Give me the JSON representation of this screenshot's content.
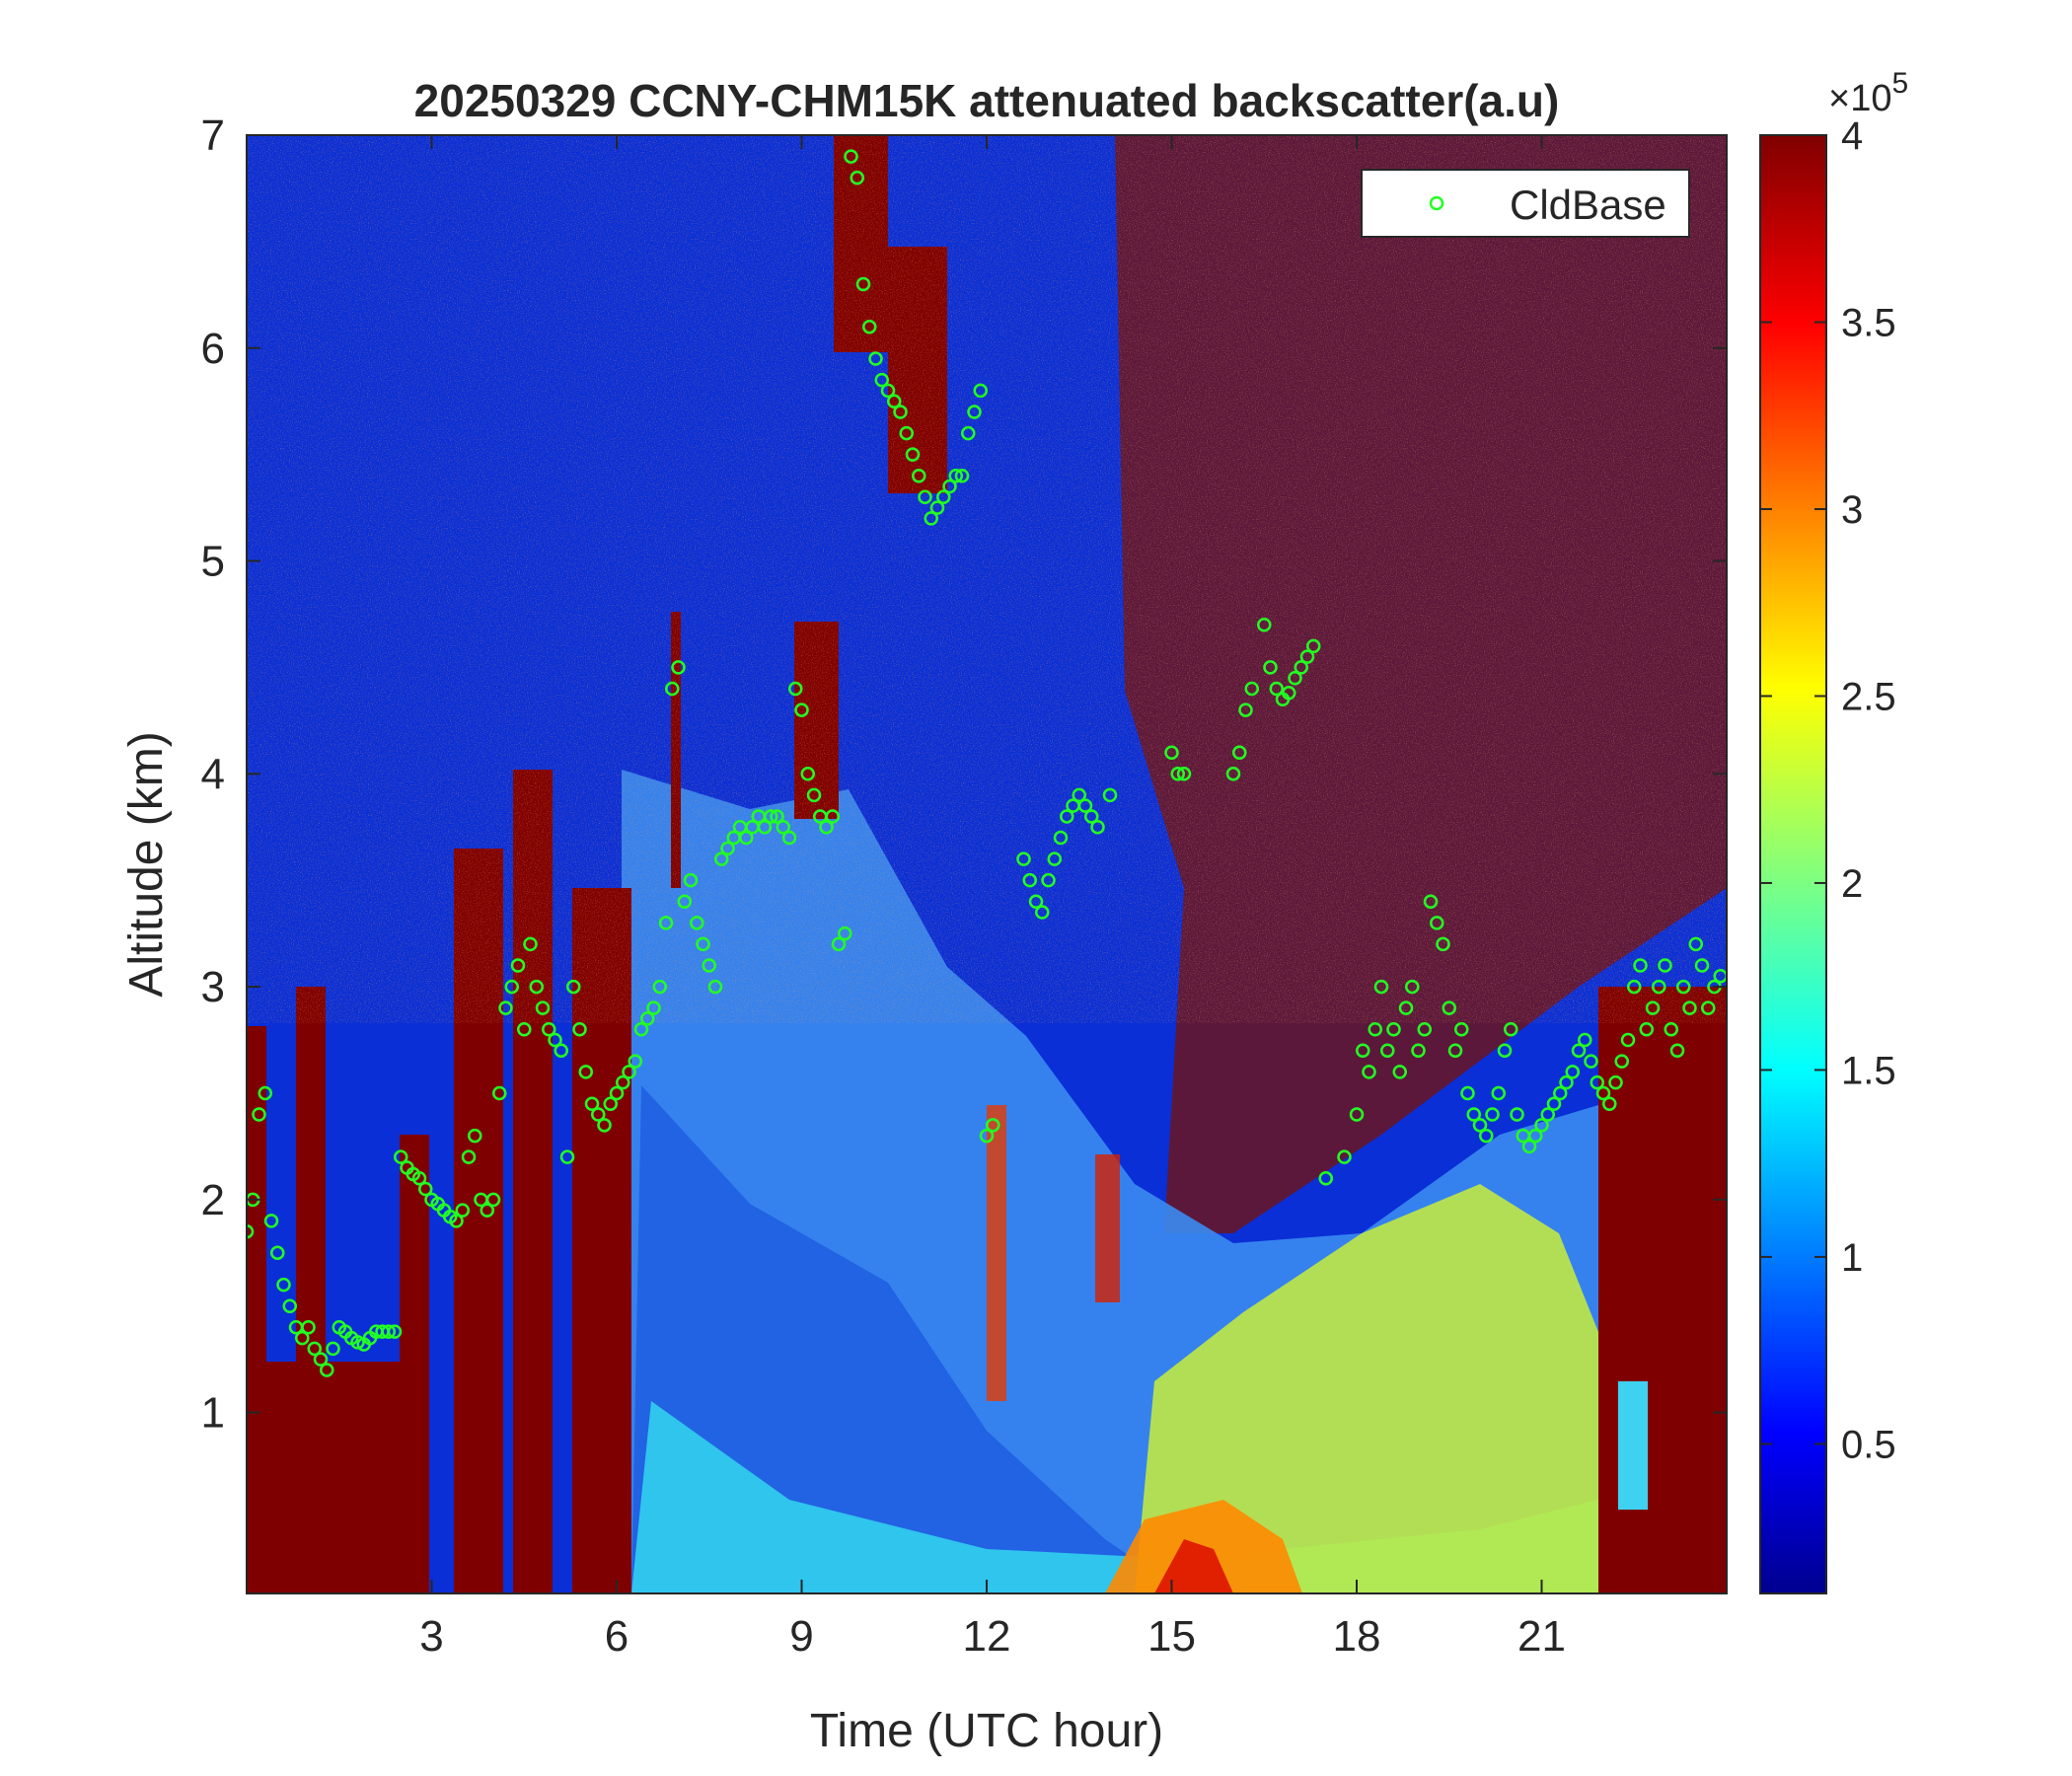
{
  "chart_data": {
    "type": "heatmap",
    "title": "20250329 CCNY-CHM15K attenuated backscatter(a.u)",
    "xlabel": "Time (UTC hour)",
    "ylabel": "Altitude (km)",
    "xlim": [
      0,
      24
    ],
    "ylim": [
      0.15,
      7
    ],
    "x_ticks": [
      3,
      6,
      9,
      12,
      15,
      18,
      21
    ],
    "y_ticks": [
      1,
      2,
      3,
      4,
      5,
      6,
      7
    ],
    "colorbar": {
      "colormap": "jet",
      "range": [
        0.1,
        4
      ],
      "ticks": [
        0.5,
        1,
        1.5,
        2,
        2.5,
        3,
        3.5,
        4
      ],
      "tick_labels": [
        "0.5",
        "1",
        "1.5",
        "2",
        "2.5",
        "3",
        "3.5",
        "4"
      ],
      "exponent_label": "×10",
      "exponent_power": "5"
    },
    "legend": {
      "position": "top-right",
      "entries": [
        {
          "name": "CldBase",
          "marker": "circle",
          "color": "#22ff22"
        }
      ]
    },
    "cloud_base_km": [
      [
        0.0,
        1.85
      ],
      [
        0.1,
        2.0
      ],
      [
        0.2,
        2.4
      ],
      [
        0.3,
        2.5
      ],
      [
        0.4,
        1.9
      ],
      [
        0.5,
        1.75
      ],
      [
        0.6,
        1.6
      ],
      [
        0.7,
        1.5
      ],
      [
        0.8,
        1.4
      ],
      [
        0.9,
        1.35
      ],
      [
        1.0,
        1.4
      ],
      [
        1.1,
        1.3
      ],
      [
        1.2,
        1.25
      ],
      [
        1.3,
        1.2
      ],
      [
        1.4,
        1.3
      ],
      [
        1.5,
        1.4
      ],
      [
        1.6,
        1.38
      ],
      [
        1.7,
        1.35
      ],
      [
        1.8,
        1.33
      ],
      [
        1.9,
        1.32
      ],
      [
        2.0,
        1.35
      ],
      [
        2.1,
        1.38
      ],
      [
        2.2,
        1.38
      ],
      [
        2.3,
        1.38
      ],
      [
        2.4,
        1.38
      ],
      [
        2.5,
        2.2
      ],
      [
        2.6,
        2.15
      ],
      [
        2.7,
        2.12
      ],
      [
        2.8,
        2.1
      ],
      [
        2.9,
        2.05
      ],
      [
        3.0,
        2.0
      ],
      [
        3.1,
        1.98
      ],
      [
        3.2,
        1.95
      ],
      [
        3.3,
        1.92
      ],
      [
        3.4,
        1.9
      ],
      [
        3.5,
        1.95
      ],
      [
        3.6,
        2.2
      ],
      [
        3.7,
        2.3
      ],
      [
        3.8,
        2.0
      ],
      [
        3.9,
        1.95
      ],
      [
        4.0,
        2.0
      ],
      [
        4.1,
        2.5
      ],
      [
        4.2,
        2.9
      ],
      [
        4.3,
        3.0
      ],
      [
        4.4,
        3.1
      ],
      [
        4.5,
        2.8
      ],
      [
        4.6,
        3.2
      ],
      [
        4.7,
        3.0
      ],
      [
        4.8,
        2.9
      ],
      [
        4.9,
        2.8
      ],
      [
        5.0,
        2.75
      ],
      [
        5.1,
        2.7
      ],
      [
        5.2,
        2.2
      ],
      [
        5.3,
        3.0
      ],
      [
        5.4,
        2.8
      ],
      [
        5.5,
        2.6
      ],
      [
        5.6,
        2.45
      ],
      [
        5.7,
        2.4
      ],
      [
        5.8,
        2.35
      ],
      [
        5.9,
        2.45
      ],
      [
        6.0,
        2.5
      ],
      [
        6.1,
        2.55
      ],
      [
        6.2,
        2.6
      ],
      [
        6.3,
        2.65
      ],
      [
        6.4,
        2.8
      ],
      [
        6.5,
        2.85
      ],
      [
        6.6,
        2.9
      ],
      [
        6.7,
        3.0
      ],
      [
        6.8,
        3.3
      ],
      [
        6.9,
        4.4
      ],
      [
        7.0,
        4.5
      ],
      [
        7.1,
        3.4
      ],
      [
        7.2,
        3.5
      ],
      [
        7.3,
        3.3
      ],
      [
        7.4,
        3.2
      ],
      [
        7.5,
        3.1
      ],
      [
        7.6,
        3.0
      ],
      [
        7.7,
        3.6
      ],
      [
        7.8,
        3.65
      ],
      [
        7.9,
        3.7
      ],
      [
        8.0,
        3.75
      ],
      [
        8.1,
        3.7
      ],
      [
        8.2,
        3.75
      ],
      [
        8.3,
        3.8
      ],
      [
        8.4,
        3.75
      ],
      [
        8.5,
        3.8
      ],
      [
        8.6,
        3.8
      ],
      [
        8.7,
        3.75
      ],
      [
        8.8,
        3.7
      ],
      [
        8.9,
        4.4
      ],
      [
        9.0,
        4.3
      ],
      [
        9.1,
        4.0
      ],
      [
        9.2,
        3.9
      ],
      [
        9.3,
        3.8
      ],
      [
        9.4,
        3.75
      ],
      [
        9.5,
        3.8
      ],
      [
        9.6,
        3.2
      ],
      [
        9.7,
        3.25
      ],
      [
        9.8,
        6.9
      ],
      [
        9.9,
        6.8
      ],
      [
        10.0,
        6.3
      ],
      [
        10.1,
        6.1
      ],
      [
        10.2,
        5.95
      ],
      [
        10.3,
        5.85
      ],
      [
        10.4,
        5.8
      ],
      [
        10.5,
        5.75
      ],
      [
        10.6,
        5.7
      ],
      [
        10.7,
        5.6
      ],
      [
        10.8,
        5.5
      ],
      [
        10.9,
        5.4
      ],
      [
        11.0,
        5.3
      ],
      [
        11.1,
        5.2
      ],
      [
        11.2,
        5.25
      ],
      [
        11.3,
        5.3
      ],
      [
        11.4,
        5.35
      ],
      [
        11.5,
        5.4
      ],
      [
        11.6,
        5.4
      ],
      [
        11.7,
        5.6
      ],
      [
        11.8,
        5.7
      ],
      [
        11.9,
        5.8
      ],
      [
        12.0,
        2.3
      ],
      [
        12.1,
        2.35
      ],
      [
        12.6,
        3.6
      ],
      [
        12.7,
        3.5
      ],
      [
        12.8,
        3.4
      ],
      [
        12.9,
        3.35
      ],
      [
        13.0,
        3.5
      ],
      [
        13.1,
        3.6
      ],
      [
        13.2,
        3.7
      ],
      [
        13.3,
        3.8
      ],
      [
        13.4,
        3.85
      ],
      [
        13.5,
        3.9
      ],
      [
        13.6,
        3.85
      ],
      [
        13.7,
        3.8
      ],
      [
        13.8,
        3.75
      ],
      [
        14.0,
        3.9
      ],
      [
        15.0,
        4.1
      ],
      [
        15.1,
        4.0
      ],
      [
        15.2,
        4.0
      ],
      [
        16.0,
        4.0
      ],
      [
        16.1,
        4.1
      ],
      [
        16.2,
        4.3
      ],
      [
        16.3,
        4.4
      ],
      [
        16.5,
        4.7
      ],
      [
        16.6,
        4.5
      ],
      [
        16.7,
        4.4
      ],
      [
        16.8,
        4.35
      ],
      [
        16.9,
        4.38
      ],
      [
        17.0,
        4.45
      ],
      [
        17.1,
        4.5
      ],
      [
        17.2,
        4.55
      ],
      [
        17.3,
        4.6
      ],
      [
        17.5,
        2.1
      ],
      [
        17.8,
        2.2
      ],
      [
        18.0,
        2.4
      ],
      [
        18.1,
        2.7
      ],
      [
        18.2,
        2.6
      ],
      [
        18.3,
        2.8
      ],
      [
        18.4,
        3.0
      ],
      [
        18.5,
        2.7
      ],
      [
        18.6,
        2.8
      ],
      [
        18.7,
        2.6
      ],
      [
        18.8,
        2.9
      ],
      [
        18.9,
        3.0
      ],
      [
        19.0,
        2.7
      ],
      [
        19.1,
        2.8
      ],
      [
        19.2,
        3.4
      ],
      [
        19.3,
        3.3
      ],
      [
        19.4,
        3.2
      ],
      [
        19.5,
        2.9
      ],
      [
        19.6,
        2.7
      ],
      [
        19.7,
        2.8
      ],
      [
        19.8,
        2.5
      ],
      [
        19.9,
        2.4
      ],
      [
        20.0,
        2.35
      ],
      [
        20.1,
        2.3
      ],
      [
        20.2,
        2.4
      ],
      [
        20.3,
        2.5
      ],
      [
        20.4,
        2.7
      ],
      [
        20.5,
        2.8
      ],
      [
        20.6,
        2.4
      ],
      [
        20.7,
        2.3
      ],
      [
        20.8,
        2.25
      ],
      [
        20.9,
        2.3
      ],
      [
        21.0,
        2.35
      ],
      [
        21.1,
        2.4
      ],
      [
        21.2,
        2.45
      ],
      [
        21.3,
        2.5
      ],
      [
        21.4,
        2.55
      ],
      [
        21.5,
        2.6
      ],
      [
        21.6,
        2.7
      ],
      [
        21.7,
        2.75
      ],
      [
        21.8,
        2.65
      ],
      [
        21.9,
        2.55
      ],
      [
        22.0,
        2.5
      ],
      [
        22.1,
        2.45
      ],
      [
        22.2,
        2.55
      ],
      [
        22.3,
        2.65
      ],
      [
        22.4,
        2.75
      ],
      [
        22.5,
        3.0
      ],
      [
        22.6,
        3.1
      ],
      [
        22.7,
        2.8
      ],
      [
        22.8,
        2.9
      ],
      [
        22.9,
        3.0
      ],
      [
        23.0,
        3.1
      ],
      [
        23.1,
        2.8
      ],
      [
        23.2,
        2.7
      ],
      [
        23.3,
        3.0
      ],
      [
        23.4,
        2.9
      ],
      [
        23.5,
        3.2
      ],
      [
        23.6,
        3.1
      ],
      [
        23.7,
        2.9
      ],
      [
        23.8,
        3.0
      ],
      [
        23.9,
        3.05
      ]
    ]
  }
}
